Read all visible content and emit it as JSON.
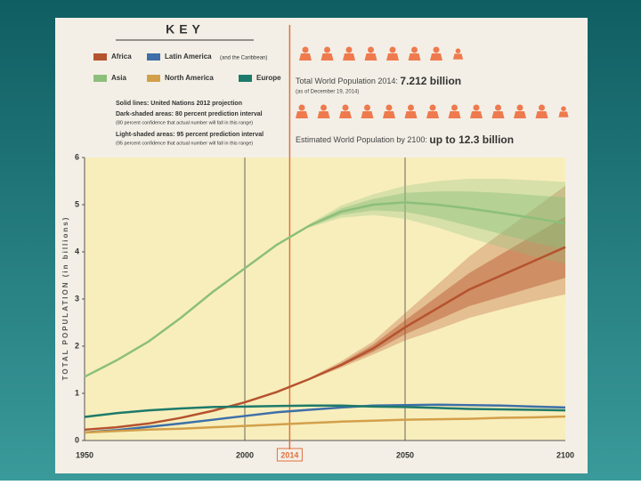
{
  "key": {
    "title": "KEY",
    "latin_note": "(and the Caribbean)",
    "notes": [
      "Solid lines: United Nations 2012 projection",
      "Dark-shaded areas: 80 percent prediction interval",
      "(80 percent confidence that actual number will fall in this range)",
      "Light-shaded areas: 95 percent prediction interval",
      "(95 percent confidence that actual number will fall in this range)"
    ]
  },
  "headline": {
    "total_label": "Total World Population 2014: ",
    "total_value": "7.212 billion",
    "as_of": "(as of December 19, 2014)",
    "estimate_label": "Estimated World Population by 2100: ",
    "estimate_value": "up to 12.3 billion"
  },
  "chart_data": {
    "type": "line",
    "y_label": "TOTAL POPULATION (in billions)",
    "x": [
      1950,
      1960,
      1970,
      1980,
      1990,
      2000,
      2010,
      2020,
      2030,
      2040,
      2050,
      2060,
      2070,
      2080,
      2090,
      2100
    ],
    "xlim": [
      1950,
      2100
    ],
    "xticks": [
      1950,
      2000,
      2014,
      2050,
      2100
    ],
    "highlight_x": 2014,
    "ylim": [
      0,
      6
    ],
    "yticks": [
      0,
      1,
      2,
      3,
      4,
      5,
      6
    ],
    "series": [
      {
        "name": "Africa",
        "color": "#b5532e",
        "values": [
          0.23,
          0.28,
          0.36,
          0.48,
          0.63,
          0.81,
          1.03,
          1.3,
          1.6,
          1.95,
          2.4,
          2.8,
          3.2,
          3.5,
          3.8,
          4.1
        ],
        "lo80": [
          null,
          null,
          null,
          null,
          null,
          null,
          null,
          1.29,
          1.57,
          1.88,
          2.25,
          2.55,
          2.85,
          3.05,
          3.25,
          3.45
        ],
        "hi80": [
          null,
          null,
          null,
          null,
          null,
          null,
          null,
          1.31,
          1.64,
          2.03,
          2.55,
          3.05,
          3.55,
          3.95,
          4.35,
          4.75
        ],
        "lo95": [
          null,
          null,
          null,
          null,
          null,
          null,
          null,
          1.28,
          1.54,
          1.82,
          2.12,
          2.35,
          2.6,
          2.78,
          2.95,
          3.1
        ],
        "hi95": [
          null,
          null,
          null,
          null,
          null,
          null,
          null,
          1.32,
          1.68,
          2.1,
          2.7,
          3.3,
          3.9,
          4.4,
          4.9,
          5.4
        ]
      },
      {
        "name": "Latin America",
        "color": "#3e6fa8",
        "values": [
          0.17,
          0.22,
          0.29,
          0.36,
          0.44,
          0.52,
          0.6,
          0.65,
          0.7,
          0.74,
          0.75,
          0.76,
          0.75,
          0.74,
          0.72,
          0.7
        ]
      },
      {
        "name": "Asia",
        "color": "#8cbf7a",
        "values": [
          1.35,
          1.7,
          2.1,
          2.6,
          3.15,
          3.65,
          4.15,
          4.55,
          4.85,
          5.0,
          5.05,
          5.0,
          4.92,
          4.82,
          4.72,
          4.6
        ],
        "lo80": [
          null,
          null,
          null,
          null,
          null,
          null,
          null,
          4.53,
          4.78,
          4.88,
          4.85,
          4.72,
          4.55,
          4.38,
          4.2,
          4.05
        ],
        "hi80": [
          null,
          null,
          null,
          null,
          null,
          null,
          null,
          4.57,
          4.92,
          5.12,
          5.25,
          5.28,
          5.28,
          5.25,
          5.2,
          5.15
        ],
        "lo95": [
          null,
          null,
          null,
          null,
          null,
          null,
          null,
          4.51,
          4.72,
          4.78,
          4.7,
          4.52,
          4.3,
          4.1,
          3.9,
          3.75
        ],
        "hi95": [
          null,
          null,
          null,
          null,
          null,
          null,
          null,
          4.59,
          4.98,
          5.22,
          5.4,
          5.5,
          5.55,
          5.55,
          5.52,
          5.48
        ]
      },
      {
        "name": "North America",
        "color": "#d2a04a",
        "values": [
          0.17,
          0.2,
          0.23,
          0.25,
          0.28,
          0.31,
          0.34,
          0.37,
          0.4,
          0.42,
          0.44,
          0.45,
          0.46,
          0.48,
          0.49,
          0.51
        ]
      },
      {
        "name": "Europe",
        "color": "#1d7a6a",
        "values": [
          0.5,
          0.58,
          0.64,
          0.68,
          0.71,
          0.72,
          0.73,
          0.74,
          0.74,
          0.72,
          0.71,
          0.69,
          0.67,
          0.66,
          0.65,
          0.64
        ]
      }
    ]
  }
}
